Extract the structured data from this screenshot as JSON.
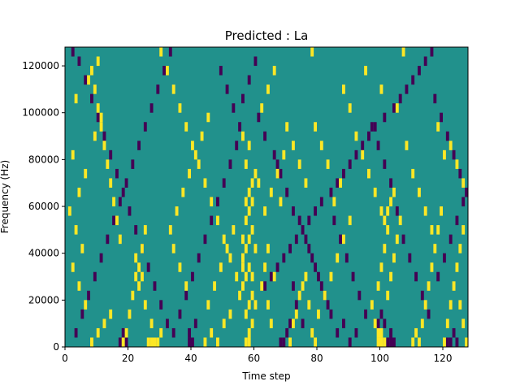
{
  "chart_data": {
    "type": "heatmap",
    "title": "Predicted : La",
    "xlabel": "Time step",
    "ylabel": "Frequency (Hz)",
    "xlim": [
      0,
      128
    ],
    "ylim": [
      0,
      128000
    ],
    "x_ticks": [
      "0",
      "20",
      "40",
      "60",
      "80",
      "100",
      "120"
    ],
    "x_tick_values": [
      0,
      20,
      40,
      60,
      80,
      100,
      120
    ],
    "y_ticks": [
      "0",
      "20000",
      "40000",
      "60000",
      "80000",
      "100000",
      "120000"
    ],
    "y_tick_values": [
      0,
      20000,
      40000,
      60000,
      80000,
      100000,
      120000
    ],
    "grid": false,
    "colormap": "viridis",
    "levels": [
      -1,
      0,
      1
    ],
    "background_value": 0,
    "colors": {
      "low": "#440154",
      "mid": "#21918c",
      "high": "#fde725"
    },
    "cell_width_steps": 1,
    "cell_height_hz": 4000,
    "high_cells": [
      [
        57,
        2000
      ],
      [
        58,
        2000
      ],
      [
        58,
        6000
      ],
      [
        59,
        10000
      ],
      [
        57,
        14000
      ],
      [
        58,
        18000
      ],
      [
        59,
        22000
      ],
      [
        56,
        26000
      ],
      [
        57,
        30000
      ],
      [
        58,
        34000
      ],
      [
        56,
        38000
      ],
      [
        57,
        42000
      ],
      [
        58,
        46000
      ],
      [
        59,
        50000
      ],
      [
        57,
        54000
      ],
      [
        58,
        58000
      ],
      [
        57,
        62000
      ],
      [
        58,
        66000
      ],
      [
        59,
        70000
      ],
      [
        60,
        74000
      ],
      [
        57,
        78000
      ],
      [
        58,
        86000
      ],
      [
        56,
        90000
      ],
      [
        60,
        18000
      ],
      [
        59,
        30000
      ],
      [
        60,
        42000
      ],
      [
        56,
        46000
      ],
      [
        56,
        34000
      ],
      [
        59,
        62000
      ],
      [
        61,
        70000
      ],
      [
        26,
        2000
      ],
      [
        27,
        2000
      ],
      [
        28,
        2000
      ],
      [
        29,
        2000
      ],
      [
        30,
        6000
      ],
      [
        27,
        10000
      ],
      [
        25,
        18000
      ],
      [
        23,
        26000
      ],
      [
        24,
        30000
      ],
      [
        23,
        34000
      ],
      [
        22,
        38000
      ],
      [
        24,
        42000
      ],
      [
        25,
        50000
      ],
      [
        8,
        2000
      ],
      [
        10,
        6000
      ],
      [
        12,
        10000
      ],
      [
        14,
        14000
      ],
      [
        6,
        18000
      ],
      [
        4,
        26000
      ],
      [
        2,
        34000
      ],
      [
        5,
        42000
      ],
      [
        3,
        50000
      ],
      [
        1,
        58000
      ],
      [
        4,
        66000
      ],
      [
        6,
        74000
      ],
      [
        2,
        82000
      ],
      [
        9,
        90000
      ],
      [
        11,
        98000
      ],
      [
        3,
        106000
      ],
      [
        7,
        114000
      ],
      [
        10,
        122000
      ],
      [
        18,
        2000
      ],
      [
        19,
        6000
      ],
      [
        20,
        14000
      ],
      [
        21,
        22000
      ],
      [
        22,
        30000
      ],
      [
        17,
        46000
      ],
      [
        16,
        54000
      ],
      [
        15,
        62000
      ],
      [
        14,
        70000
      ],
      [
        13,
        78000
      ],
      [
        12,
        86000
      ],
      [
        11,
        94000
      ],
      [
        10,
        102000
      ],
      [
        9,
        110000
      ],
      [
        8,
        118000
      ],
      [
        30,
        126000
      ],
      [
        32,
        118000
      ],
      [
        34,
        110000
      ],
      [
        36,
        102000
      ],
      [
        38,
        94000
      ],
      [
        40,
        86000
      ],
      [
        42,
        78000
      ],
      [
        44,
        70000
      ],
      [
        46,
        62000
      ],
      [
        48,
        54000
      ],
      [
        50,
        46000
      ],
      [
        52,
        38000
      ],
      [
        54,
        30000
      ],
      [
        55,
        22000
      ],
      [
        44,
        2000
      ],
      [
        46,
        6000
      ],
      [
        48,
        2000
      ],
      [
        50,
        10000
      ],
      [
        52,
        14000
      ],
      [
        45,
        18000
      ],
      [
        47,
        26000
      ],
      [
        49,
        34000
      ],
      [
        51,
        42000
      ],
      [
        53,
        50000
      ],
      [
        38,
        26000
      ],
      [
        36,
        34000
      ],
      [
        34,
        42000
      ],
      [
        33,
        50000
      ],
      [
        35,
        58000
      ],
      [
        37,
        66000
      ],
      [
        39,
        74000
      ],
      [
        41,
        82000
      ],
      [
        43,
        90000
      ],
      [
        45,
        98000
      ],
      [
        62,
        26000
      ],
      [
        63,
        34000
      ],
      [
        64,
        18000
      ],
      [
        65,
        10000
      ],
      [
        66,
        30000
      ],
      [
        64,
        42000
      ],
      [
        63,
        58000
      ],
      [
        65,
        66000
      ],
      [
        67,
        74000
      ],
      [
        69,
        82000
      ],
      [
        71,
        2000
      ],
      [
        72,
        10000
      ],
      [
        73,
        14000
      ],
      [
        74,
        22000
      ],
      [
        75,
        26000
      ],
      [
        76,
        30000
      ],
      [
        77,
        18000
      ],
      [
        78,
        6000
      ],
      [
        79,
        2000
      ],
      [
        80,
        14000
      ],
      [
        82,
        22000
      ],
      [
        84,
        30000
      ],
      [
        86,
        38000
      ],
      [
        88,
        46000
      ],
      [
        90,
        54000
      ],
      [
        85,
        62000
      ],
      [
        87,
        70000
      ],
      [
        83,
        78000
      ],
      [
        81,
        86000
      ],
      [
        79,
        94000
      ],
      [
        99,
        2000
      ],
      [
        100,
        2000
      ],
      [
        101,
        2000
      ],
      [
        99,
        6000
      ],
      [
        100,
        6000
      ],
      [
        98,
        10000
      ],
      [
        97,
        18000
      ],
      [
        99,
        26000
      ],
      [
        100,
        34000
      ],
      [
        101,
        42000
      ],
      [
        102,
        50000
      ],
      [
        101,
        54000
      ],
      [
        102,
        58000
      ],
      [
        103,
        62000
      ],
      [
        104,
        66000
      ],
      [
        102,
        22000
      ],
      [
        103,
        30000
      ],
      [
        104,
        38000
      ],
      [
        105,
        46000
      ],
      [
        106,
        54000
      ],
      [
        110,
        2000
      ],
      [
        111,
        6000
      ],
      [
        112,
        2000
      ],
      [
        113,
        10000
      ],
      [
        114,
        18000
      ],
      [
        115,
        26000
      ],
      [
        116,
        34000
      ],
      [
        117,
        42000
      ],
      [
        118,
        50000
      ],
      [
        119,
        58000
      ],
      [
        120,
        2000
      ],
      [
        121,
        10000
      ],
      [
        122,
        18000
      ],
      [
        123,
        26000
      ],
      [
        124,
        34000
      ],
      [
        125,
        42000
      ],
      [
        126,
        50000
      ],
      [
        127,
        2000
      ],
      [
        126,
        10000
      ],
      [
        125,
        18000
      ],
      [
        92,
        90000
      ],
      [
        94,
        82000
      ],
      [
        96,
        74000
      ],
      [
        98,
        66000
      ],
      [
        100,
        58000
      ],
      [
        108,
        86000
      ],
      [
        110,
        74000
      ],
      [
        112,
        66000
      ],
      [
        114,
        58000
      ],
      [
        116,
        50000
      ],
      [
        118,
        94000
      ],
      [
        120,
        82000
      ],
      [
        122,
        86000
      ],
      [
        124,
        78000
      ],
      [
        126,
        70000
      ],
      [
        88,
        110000
      ],
      [
        90,
        102000
      ],
      [
        95,
        118000
      ],
      [
        100,
        110000
      ],
      [
        105,
        102000
      ],
      [
        107,
        126000
      ],
      [
        78,
        126000
      ],
      [
        66,
        118000
      ],
      [
        64,
        110000
      ],
      [
        62,
        102000
      ],
      [
        70,
        94000
      ],
      [
        72,
        86000
      ],
      [
        74,
        78000
      ],
      [
        76,
        70000
      ],
      [
        68,
        62000
      ]
    ],
    "low_cells": [
      [
        17,
        2000
      ],
      [
        18,
        2000
      ],
      [
        19,
        2000
      ],
      [
        18,
        6000
      ],
      [
        39,
        2000
      ],
      [
        40,
        2000
      ],
      [
        39,
        6000
      ],
      [
        41,
        10000
      ],
      [
        68,
        2000
      ],
      [
        69,
        2000
      ],
      [
        70,
        6000
      ],
      [
        71,
        10000
      ],
      [
        102,
        2000
      ],
      [
        103,
        2000
      ],
      [
        104,
        2000
      ],
      [
        103,
        6000
      ],
      [
        121,
        2000
      ],
      [
        122,
        2000
      ],
      [
        123,
        6000
      ],
      [
        124,
        2000
      ],
      [
        99,
        10000
      ],
      [
        100,
        14000
      ],
      [
        101,
        10000
      ],
      [
        3,
        6000
      ],
      [
        5,
        14000
      ],
      [
        7,
        22000
      ],
      [
        9,
        30000
      ],
      [
        11,
        38000
      ],
      [
        13,
        46000
      ],
      [
        15,
        54000
      ],
      [
        17,
        62000
      ],
      [
        19,
        70000
      ],
      [
        21,
        78000
      ],
      [
        23,
        86000
      ],
      [
        25,
        94000
      ],
      [
        27,
        102000
      ],
      [
        29,
        110000
      ],
      [
        31,
        118000
      ],
      [
        33,
        126000
      ],
      [
        2,
        126000
      ],
      [
        4,
        122000
      ],
      [
        6,
        114000
      ],
      [
        8,
        106000
      ],
      [
        10,
        98000
      ],
      [
        12,
        90000
      ],
      [
        14,
        82000
      ],
      [
        16,
        74000
      ],
      [
        18,
        66000
      ],
      [
        20,
        58000
      ],
      [
        22,
        50000
      ],
      [
        24,
        42000
      ],
      [
        26,
        34000
      ],
      [
        28,
        26000
      ],
      [
        30,
        18000
      ],
      [
        32,
        10000
      ],
      [
        34,
        6000
      ],
      [
        36,
        14000
      ],
      [
        38,
        22000
      ],
      [
        40,
        30000
      ],
      [
        42,
        38000
      ],
      [
        44,
        46000
      ],
      [
        46,
        54000
      ],
      [
        48,
        62000
      ],
      [
        50,
        70000
      ],
      [
        52,
        78000
      ],
      [
        54,
        86000
      ],
      [
        55,
        94000
      ],
      [
        53,
        102000
      ],
      [
        51,
        110000
      ],
      [
        49,
        118000
      ],
      [
        63,
        26000
      ],
      [
        65,
        30000
      ],
      [
        67,
        34000
      ],
      [
        69,
        38000
      ],
      [
        71,
        42000
      ],
      [
        73,
        46000
      ],
      [
        75,
        50000
      ],
      [
        77,
        54000
      ],
      [
        79,
        58000
      ],
      [
        81,
        62000
      ],
      [
        84,
        66000
      ],
      [
        86,
        70000
      ],
      [
        88,
        74000
      ],
      [
        90,
        78000
      ],
      [
        92,
        82000
      ],
      [
        94,
        86000
      ],
      [
        96,
        90000
      ],
      [
        98,
        94000
      ],
      [
        101,
        98000
      ],
      [
        104,
        102000
      ],
      [
        106,
        106000
      ],
      [
        108,
        110000
      ],
      [
        110,
        114000
      ],
      [
        112,
        118000
      ],
      [
        114,
        122000
      ],
      [
        116,
        126000
      ],
      [
        118,
        30000
      ],
      [
        120,
        38000
      ],
      [
        122,
        46000
      ],
      [
        124,
        54000
      ],
      [
        126,
        62000
      ],
      [
        127,
        66000
      ],
      [
        125,
        74000
      ],
      [
        123,
        82000
      ],
      [
        121,
        90000
      ],
      [
        119,
        98000
      ],
      [
        117,
        106000
      ],
      [
        115,
        14000
      ],
      [
        113,
        22000
      ],
      [
        111,
        30000
      ],
      [
        109,
        38000
      ],
      [
        107,
        46000
      ],
      [
        105,
        58000
      ],
      [
        103,
        70000
      ],
      [
        101,
        78000
      ],
      [
        99,
        86000
      ],
      [
        97,
        94000
      ],
      [
        95,
        14000
      ],
      [
        93,
        22000
      ],
      [
        91,
        30000
      ],
      [
        89,
        38000
      ],
      [
        87,
        46000
      ],
      [
        85,
        54000
      ],
      [
        83,
        18000
      ],
      [
        81,
        26000
      ],
      [
        79,
        34000
      ],
      [
        77,
        42000
      ],
      [
        75,
        10000
      ],
      [
        73,
        18000
      ],
      [
        72,
        26000
      ],
      [
        60,
        122000
      ],
      [
        58,
        114000
      ],
      [
        56,
        106000
      ],
      [
        61,
        98000
      ],
      [
        63,
        90000
      ],
      [
        66,
        82000
      ],
      [
        67,
        78000
      ],
      [
        68,
        74000
      ],
      [
        70,
        66000
      ],
      [
        72,
        58000
      ],
      [
        74,
        54000
      ],
      [
        76,
        46000
      ],
      [
        78,
        38000
      ],
      [
        80,
        30000
      ],
      [
        82,
        22000
      ],
      [
        84,
        14000
      ],
      [
        86,
        6000
      ],
      [
        88,
        10000
      ],
      [
        90,
        2000
      ],
      [
        92,
        6000
      ]
    ]
  }
}
